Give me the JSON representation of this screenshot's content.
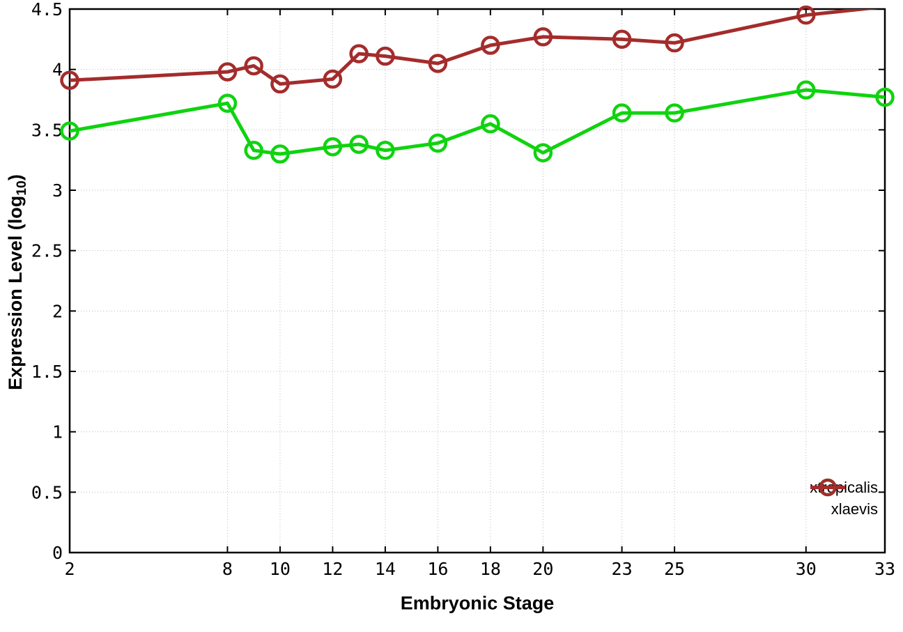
{
  "chart_data": {
    "type": "line",
    "title": "",
    "xlabel": "Embryonic Stage",
    "ylabel_prefix": "Expression Level (log",
    "ylabel_sub": "10",
    "ylabel_suffix": ")",
    "x": [
      2,
      8,
      9,
      10,
      12,
      13,
      14,
      16,
      18,
      20,
      23,
      25,
      30,
      33
    ],
    "series": [
      {
        "name": "xtropicalis",
        "color": "#0fd30f",
        "values": [
          3.49,
          3.72,
          3.33,
          3.3,
          3.36,
          3.38,
          3.33,
          3.39,
          3.55,
          3.31,
          3.64,
          3.64,
          3.83,
          3.77
        ]
      },
      {
        "name": "xlaevis",
        "color": "#a42c2c",
        "values": [
          3.91,
          3.98,
          4.03,
          3.88,
          3.92,
          4.13,
          4.11,
          4.05,
          4.2,
          4.27,
          4.25,
          4.22,
          4.45,
          4.52
        ]
      }
    ],
    "xlim": [
      2,
      33
    ],
    "ylim": [
      0,
      4.5
    ],
    "x_ticks": [
      2,
      8,
      10,
      12,
      14,
      16,
      18,
      20,
      23,
      25,
      30,
      33
    ],
    "y_ticks": [
      0,
      0.5,
      1,
      1.5,
      2,
      2.5,
      3,
      3.5,
      4,
      4.5
    ],
    "grid": true,
    "grid_color": "#bbbbbb",
    "border_color": "#000000",
    "background": "#ffffff",
    "marker": "open-circle",
    "legend_position": "bottom-right",
    "legend_entries": [
      "xtropicalis",
      "xlaevis"
    ]
  }
}
